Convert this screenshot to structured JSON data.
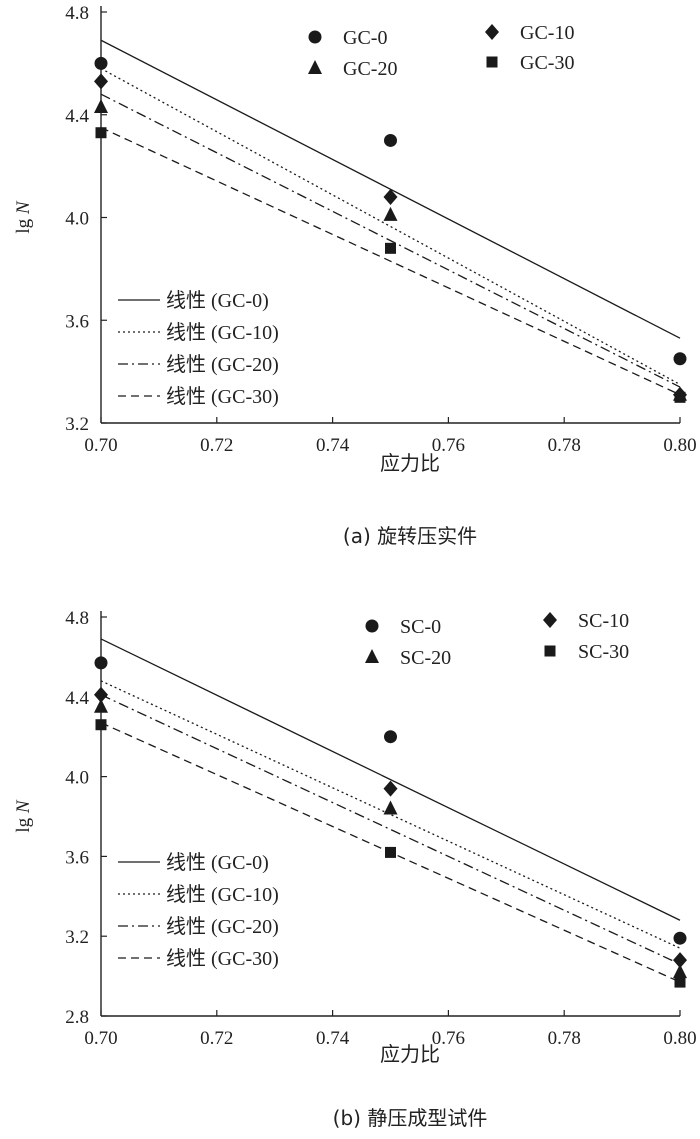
{
  "chart_data": [
    {
      "type": "scatter",
      "caption": "(a) 旋转压实件",
      "xlabel": "应力比",
      "ylabel_prefix": "lg",
      "ylabel_var": "N",
      "xlim": [
        0.7,
        0.8
      ],
      "ylim": [
        3.2,
        4.8
      ],
      "xticks": [
        "0.70",
        "0.72",
        "0.74",
        "0.76",
        "0.78",
        "0.80"
      ],
      "xtick_values": [
        0.7,
        0.72,
        0.74,
        0.76,
        0.78,
        0.8
      ],
      "yticks": [
        "3.2",
        "3.6",
        "4.0",
        "4.4",
        "4.8"
      ],
      "ytick_values": [
        3.2,
        3.6,
        4.0,
        4.4,
        4.8
      ],
      "x": [
        0.7,
        0.75,
        0.8
      ],
      "series": [
        {
          "name": "GC-0",
          "marker": "circle",
          "values": [
            4.6,
            4.3,
            3.45
          ],
          "fit": [
            4.69,
            3.53
          ],
          "fit_style": "solid",
          "fit_label": "线性 (GC-0)"
        },
        {
          "name": "GC-10",
          "marker": "diamond",
          "values": [
            4.53,
            4.08,
            3.31
          ],
          "fit": [
            4.58,
            3.35
          ],
          "fit_style": "dotted",
          "fit_label": "线性 (GC-10)"
        },
        {
          "name": "GC-20",
          "marker": "triangle",
          "values": [
            4.43,
            4.01,
            3.31
          ],
          "fit": [
            4.48,
            3.34
          ],
          "fit_style": "dashdot",
          "fit_label": "线性 (GC-20)"
        },
        {
          "name": "GC-30",
          "marker": "square",
          "values": [
            4.33,
            3.88,
            3.3
          ],
          "fit": [
            4.35,
            3.31
          ],
          "fit_style": "dashed",
          "fit_label": "线性 (GC-30)"
        }
      ]
    },
    {
      "type": "scatter",
      "caption": "(b) 静压成型试件",
      "xlabel": "应力比",
      "ylabel_prefix": "lg",
      "ylabel_var": "N",
      "xlim": [
        0.7,
        0.8
      ],
      "ylim": [
        2.8,
        4.8
      ],
      "xticks": [
        "0.70",
        "0.72",
        "0.74",
        "0.76",
        "0.78",
        "0.80"
      ],
      "xtick_values": [
        0.7,
        0.72,
        0.74,
        0.76,
        0.78,
        0.8
      ],
      "yticks": [
        "2.8",
        "3.2",
        "3.6",
        "4.0",
        "4.4",
        "4.8"
      ],
      "ytick_values": [
        2.8,
        3.2,
        3.6,
        4.0,
        4.4,
        4.8
      ],
      "x": [
        0.7,
        0.75,
        0.8
      ],
      "series": [
        {
          "name": "SC-0",
          "marker": "circle",
          "values": [
            4.57,
            4.2,
            3.19
          ],
          "fit": [
            4.69,
            3.28
          ],
          "fit_style": "solid",
          "fit_label": "线性 (GC-0)"
        },
        {
          "name": "SC-10",
          "marker": "diamond",
          "values": [
            4.41,
            3.94,
            3.08
          ],
          "fit": [
            4.48,
            3.14
          ],
          "fit_style": "dotted",
          "fit_label": "线性 (GC-10)"
        },
        {
          "name": "SC-20",
          "marker": "triangle",
          "values": [
            4.35,
            3.84,
            3.02
          ],
          "fit": [
            4.41,
            3.06
          ],
          "fit_style": "dashdot",
          "fit_label": "线性 (GC-20)"
        },
        {
          "name": "SC-30",
          "marker": "square",
          "values": [
            4.26,
            3.62,
            2.97
          ],
          "fit": [
            4.27,
            2.97
          ],
          "fit_style": "dashed",
          "fit_label": "线性 (GC-30)"
        }
      ]
    }
  ]
}
